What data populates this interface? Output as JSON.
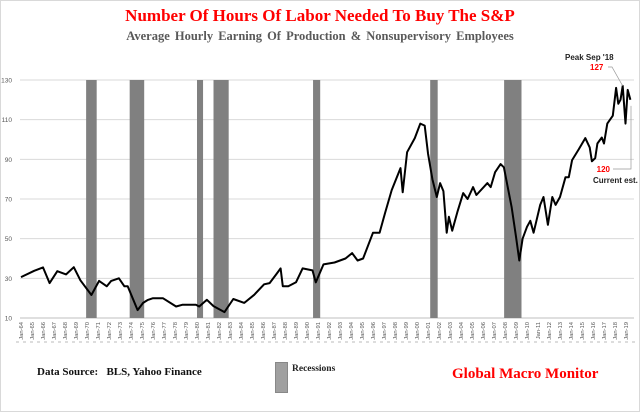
{
  "title": "Number Of Hours Of Labor Needed To Buy The S&P",
  "subtitle": "Average Hourly Earning Of Production & Nonsupervisory Employees",
  "footer": {
    "source": "Data Source:   BLS, Yahoo Finance",
    "legend_label": "Recessions",
    "brand": "Global Macro Monitor"
  },
  "colors": {
    "line": "#000000",
    "recession": "#808080",
    "title": "#ff0000",
    "subtitle": "#595959",
    "annotation_value": "#ff0000",
    "grid": "#d9d9d9"
  },
  "chart_data": {
    "type": "line",
    "title": "Number Of Hours Of Labor Needed To Buy The S&P",
    "subtitle": "Average Hourly Earning Of Production & Nonsupervisory Employees",
    "xlabel": "",
    "ylabel": "",
    "xlim": [
      1964,
      2019.6
    ],
    "ylim": [
      10,
      130
    ],
    "yticks": [
      10,
      30,
      50,
      70,
      90,
      110,
      130
    ],
    "xtick_labels": [
      "Jan-64",
      "Jan-65",
      "Jan-66",
      "Jan-67",
      "Jan-68",
      "Jan-69",
      "Jan-70",
      "Jan-71",
      "Jan-72",
      "Jan-73",
      "Jan-74",
      "Jan-75",
      "Jan-76",
      "Jan-77",
      "Jan-78",
      "Jan-79",
      "Jan-80",
      "Jan-81",
      "Jan-82",
      "Jan-83",
      "Jan-84",
      "Jan-85",
      "Jan-86",
      "Jan-87",
      "Jan-88",
      "Jan-89",
      "Jan-90",
      "Jan-91",
      "Jan-92",
      "Jan-93",
      "Jan-94",
      "Jan-95",
      "Jan-96",
      "Jan-97",
      "Jan-98",
      "Jan-99",
      "Jan-00",
      "Jan-01",
      "Jan-02",
      "Jan-03",
      "Jan-04",
      "Jan-05",
      "Jan-06",
      "Jan-07",
      "Jan-08",
      "Jan-09",
      "Jan-10",
      "Jan-11",
      "Jan-12",
      "Jan-13",
      "Jan-14",
      "Jan-15",
      "Jan-16",
      "Jan-17",
      "Jan-18",
      "Jan-19"
    ],
    "grid": "horizontal",
    "legend": "bottom-center",
    "series": [
      {
        "x": [
          1964,
          1965.2,
          1966,
          1966.6,
          1967.3,
          1968.1,
          1968.8,
          1969.4,
          1970.4,
          1971.1,
          1971.8,
          1972.2,
          1972.9,
          1973.4,
          1973.7,
          1974.6,
          1975.1,
          1975.5,
          1976,
          1976.9,
          1978.1,
          1978.7,
          1979.9,
          1980.2,
          1980.9,
          1981.5,
          1982.5,
          1983.3,
          1984.3,
          1985.2,
          1986.1,
          1986.6,
          1987.2,
          1987.6,
          1987.8,
          1988.3,
          1989,
          1989.6,
          1990.5,
          1990.8,
          1991.5,
          1992.5,
          1993.5,
          1994.1,
          1994.6,
          1995.1,
          1996,
          1996.6,
          1997.1,
          1997.7,
          1998.5,
          1998.7,
          1999.1,
          1999.8,
          2000.3,
          2000.7,
          2001,
          2001.4,
          2001.8,
          2002.1,
          2002.4,
          2002.7,
          2002.9,
          2003.2,
          2003.7,
          2004.2,
          2004.6,
          2005.1,
          2005.4,
          2006.4,
          2006.7,
          2007.1,
          2007.6,
          2007.9,
          2008.3,
          2008.6,
          2009,
          2009.3,
          2009.6,
          2010,
          2010.3,
          2010.6,
          2011.2,
          2011.5,
          2011.9,
          2012.3,
          2012.6,
          2013,
          2013.5,
          2013.8,
          2014.1,
          2014.7,
          2015.3,
          2015.7,
          2015.9,
          2016.2,
          2016.4,
          2016.8,
          2017,
          2017.3,
          2017.8,
          2018.1,
          2018.3,
          2018.5,
          2018.7,
          2018.95,
          2019.15,
          2019.4
        ],
        "y": [
          30.6,
          33.8,
          35.5,
          27.6,
          33.6,
          32,
          35.6,
          29,
          21.6,
          28.7,
          26,
          28.7,
          30,
          26,
          26,
          14,
          17.6,
          19,
          20,
          20,
          15.8,
          16.7,
          16.7,
          15.8,
          19.2,
          16,
          13,
          19.6,
          17.6,
          21.7,
          27,
          27.6,
          32,
          35,
          26,
          26,
          28,
          35,
          34,
          28,
          37,
          38,
          40,
          42.7,
          39,
          40,
          53,
          53,
          63,
          74.5,
          85.6,
          73.4,
          93.6,
          100.7,
          108,
          107,
          93,
          80,
          71,
          78,
          74,
          53,
          61,
          54,
          64,
          73,
          70,
          76,
          72,
          78,
          76,
          83.5,
          87.6,
          86,
          74.5,
          66,
          51,
          39,
          50,
          56,
          59,
          53,
          67,
          71,
          57,
          71,
          67,
          71,
          81,
          81,
          89.6,
          95,
          100.7,
          96,
          89,
          90.6,
          98,
          101,
          98,
          108,
          112,
          126,
          118,
          120,
          127,
          108,
          125,
          120
        ]
      }
    ],
    "recessions": [
      [
        1969.92,
        1970.88
      ],
      [
        1973.88,
        1975.2
      ],
      [
        1980.0,
        1980.55
      ],
      [
        1981.5,
        1982.88
      ],
      [
        1990.55,
        1991.2
      ],
      [
        2001.2,
        2001.88
      ],
      [
        2007.92,
        2009.5
      ]
    ],
    "annotations": [
      {
        "label": "Peak Sep '18",
        "value": "127",
        "x": 2018.7,
        "y": 127
      },
      {
        "label": "Current est.",
        "value": "120",
        "x": 2019.4,
        "y": 120
      }
    ]
  }
}
